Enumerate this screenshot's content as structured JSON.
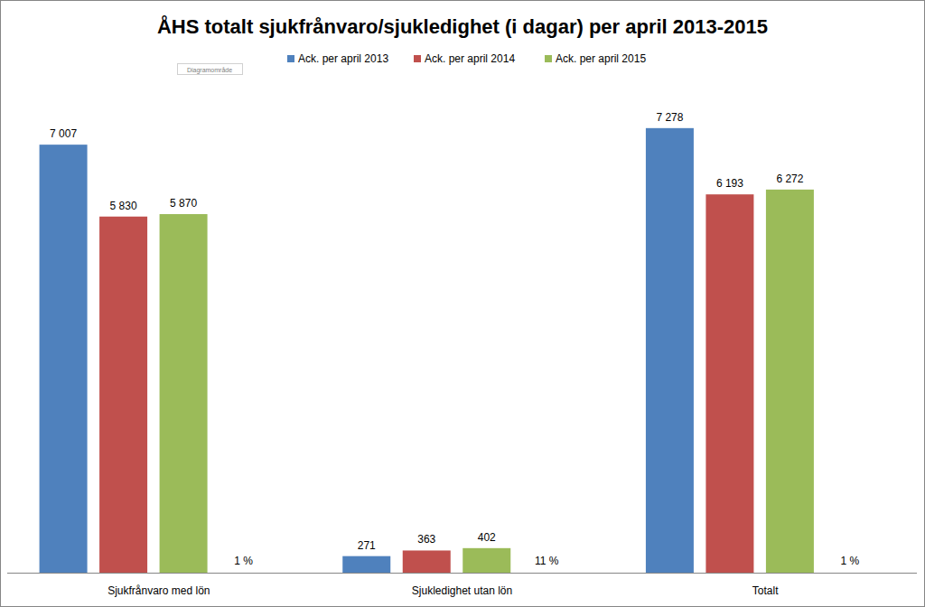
{
  "chart_data": {
    "type": "bar",
    "title": "ÅHS totalt sjukfrånvaro/sjukledighet (i dagar) per april 2013-2015",
    "categories": [
      "Sjukfrånvaro med lön",
      "Sjukledighet utan lön",
      "Totalt"
    ],
    "series": [
      {
        "name": "Ack. per april 2013",
        "color": "#4f81bd",
        "values": [
          7007,
          271,
          7278
        ],
        "value_labels": [
          "7 007",
          "271",
          "7 278"
        ]
      },
      {
        "name": "Ack. per april 2014",
        "color": "#c0504d",
        "values": [
          5830,
          363,
          6193
        ],
        "value_labels": [
          "5 830",
          "363",
          "6 193"
        ]
      },
      {
        "name": "Ack. per april 2015",
        "color": "#9bbb59",
        "values": [
          5870,
          402,
          6272
        ],
        "value_labels": [
          "5 870",
          "402",
          "6 272"
        ]
      }
    ],
    "change": {
      "values": [
        1,
        11,
        1
      ],
      "value_labels": [
        "1 %",
        "11 %",
        "1 %"
      ]
    },
    "annotations": [
      "Diagramområde"
    ],
    "ylim": [
      0,
      8000
    ],
    "tick_labels": "x",
    "grid": false,
    "legend": "top",
    "data_labels": true
  }
}
